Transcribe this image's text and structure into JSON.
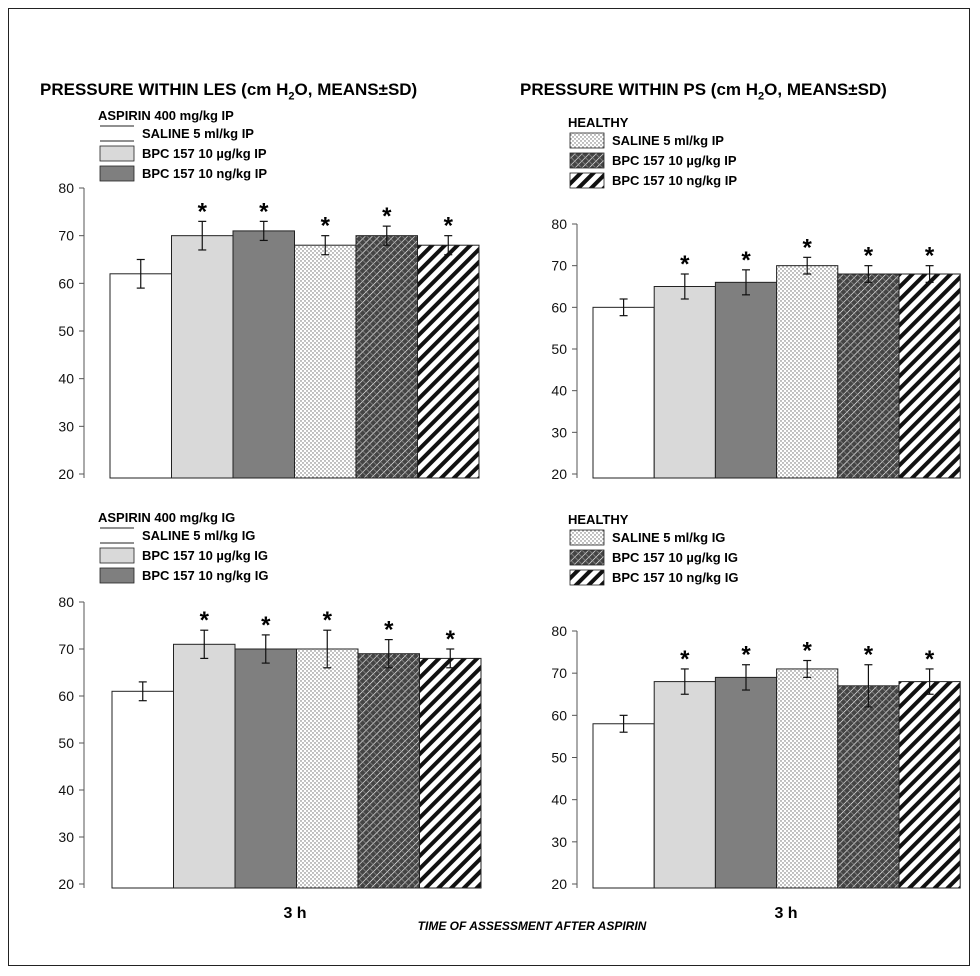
{
  "titles": {
    "left": "PRESSURE WITHIN LES (cm H₂O, MEANS±SD)",
    "right": "PRESSURE WITHIN PS (cm H₂O, MEANS±SD)"
  },
  "bottom": {
    "x_tick_left": "3 h",
    "x_tick_right": "3 h",
    "xlabel": "TIME OF ASSESSMENT AFTER ASPIRIN"
  },
  "series_styles": [
    "white",
    "lightgray",
    "darkgray",
    "dotted",
    "crosshatch",
    "diagonal"
  ],
  "colors": {
    "lightgray": "#d9d9d9",
    "darkgray": "#7f7f7f",
    "axis": "#555555",
    "text": "#000000"
  },
  "chart_data": [
    {
      "type": "bar",
      "title": "PRESSURE WITHIN LES (cm H₂O, MEANS±SD)",
      "categories": [
        "3 h"
      ],
      "ylim": [
        20,
        80
      ],
      "yticks": [
        20,
        30,
        40,
        50,
        60,
        70,
        80
      ],
      "legend_left_header": "ASPIRIN 400 mg/kg IP",
      "legend_left": [
        "SALINE 5 ml/kg IP",
        "BPC 157 10 µg/kg IP",
        "BPC 157 10 ng/kg IP"
      ],
      "series": [
        {
          "name": "SALINE 5 ml/kg IP",
          "values": [
            62
          ],
          "sd": [
            3
          ],
          "star": false
        },
        {
          "name": "BPC 157 10 µg/kg IP",
          "values": [
            70
          ],
          "sd": [
            3
          ],
          "star": true
        },
        {
          "name": "BPC 157 10 ng/kg IP",
          "values": [
            71
          ],
          "sd": [
            2
          ],
          "star": true
        },
        {
          "name": "SALINE 5 ml/kg IP",
          "values": [
            68
          ],
          "sd": [
            2
          ],
          "star": true
        },
        {
          "name": "BPC 157 10 µg/kg IP",
          "values": [
            70
          ],
          "sd": [
            2
          ],
          "star": true
        },
        {
          "name": "BPC 157 10 ng/kg IP",
          "values": [
            68
          ],
          "sd": [
            2
          ],
          "star": true
        }
      ]
    },
    {
      "type": "bar",
      "title": "PRESSURE WITHIN PS (cm H₂O, MEANS±SD)",
      "categories": [
        "3 h"
      ],
      "ylim": [
        20,
        80
      ],
      "yticks": [
        20,
        30,
        40,
        50,
        60,
        70,
        80
      ],
      "legend_right_header": "HEALTHY",
      "legend_right": [
        "SALINE 5 ml/kg IP",
        "BPC 157 10 µg/kg IP",
        "BPC 157 10 ng/kg IP"
      ],
      "series": [
        {
          "name": "SALINE 5 ml/kg IP",
          "values": [
            60
          ],
          "sd": [
            2
          ],
          "star": false
        },
        {
          "name": "BPC 157 10 µg/kg IP",
          "values": [
            65
          ],
          "sd": [
            3
          ],
          "star": true
        },
        {
          "name": "BPC 157 10 ng/kg IP",
          "values": [
            66
          ],
          "sd": [
            3
          ],
          "star": true
        },
        {
          "name": "SALINE 5 ml/kg IP",
          "values": [
            70
          ],
          "sd": [
            2
          ],
          "star": true
        },
        {
          "name": "BPC 157 10 µg/kg IP",
          "values": [
            68
          ],
          "sd": [
            2
          ],
          "star": true
        },
        {
          "name": "BPC 157 10 ng/kg IP",
          "values": [
            68
          ],
          "sd": [
            2
          ],
          "star": true
        }
      ]
    },
    {
      "type": "bar",
      "categories": [
        "3 h"
      ],
      "ylim": [
        20,
        80
      ],
      "yticks": [
        20,
        30,
        40,
        50,
        60,
        70,
        80
      ],
      "legend_left_header": "ASPIRIN 400 mg/kg IG",
      "legend_left": [
        "SALINE 5 ml/kg IG",
        "BPC 157 10 µg/kg IG",
        "BPC 157 10 ng/kg IG"
      ],
      "series": [
        {
          "name": "SALINE 5 ml/kg IG",
          "values": [
            61
          ],
          "sd": [
            2
          ],
          "star": false
        },
        {
          "name": "BPC 157 10 µg/kg IG",
          "values": [
            71
          ],
          "sd": [
            3
          ],
          "star": true
        },
        {
          "name": "BPC 157 10 ng/kg IG",
          "values": [
            70
          ],
          "sd": [
            3
          ],
          "star": true
        },
        {
          "name": "SALINE 5 ml/kg IG",
          "values": [
            70
          ],
          "sd": [
            4
          ],
          "star": true
        },
        {
          "name": "BPC 157 10 µg/kg IG",
          "values": [
            69
          ],
          "sd": [
            3
          ],
          "star": true
        },
        {
          "name": "BPC 157 10 ng/kg IG",
          "values": [
            68
          ],
          "sd": [
            2
          ],
          "star": true
        }
      ]
    },
    {
      "type": "bar",
      "categories": [
        "3 h"
      ],
      "ylim": [
        20,
        80
      ],
      "yticks": [
        20,
        30,
        40,
        50,
        60,
        70,
        80
      ],
      "legend_right_header": "HEALTHY",
      "legend_right": [
        "SALINE 5 ml/kg IG",
        "BPC 157 10 µg/kg IG",
        "BPC 157 10 ng/kg IG"
      ],
      "series": [
        {
          "name": "SALINE 5 ml/kg IG",
          "values": [
            58
          ],
          "sd": [
            2
          ],
          "star": false
        },
        {
          "name": "BPC 157 10 µg/kg IG",
          "values": [
            68
          ],
          "sd": [
            3
          ],
          "star": true
        },
        {
          "name": "BPC 157 10 ng/kg IG",
          "values": [
            69
          ],
          "sd": [
            3
          ],
          "star": true
        },
        {
          "name": "SALINE 5 ml/kg IG",
          "values": [
            71
          ],
          "sd": [
            2
          ],
          "star": true
        },
        {
          "name": "BPC 157 10 µg/kg IG",
          "values": [
            67
          ],
          "sd": [
            5
          ],
          "star": true
        },
        {
          "name": "BPC 157 10 ng/kg IG",
          "values": [
            68
          ],
          "sd": [
            3
          ],
          "star": true
        }
      ]
    }
  ]
}
